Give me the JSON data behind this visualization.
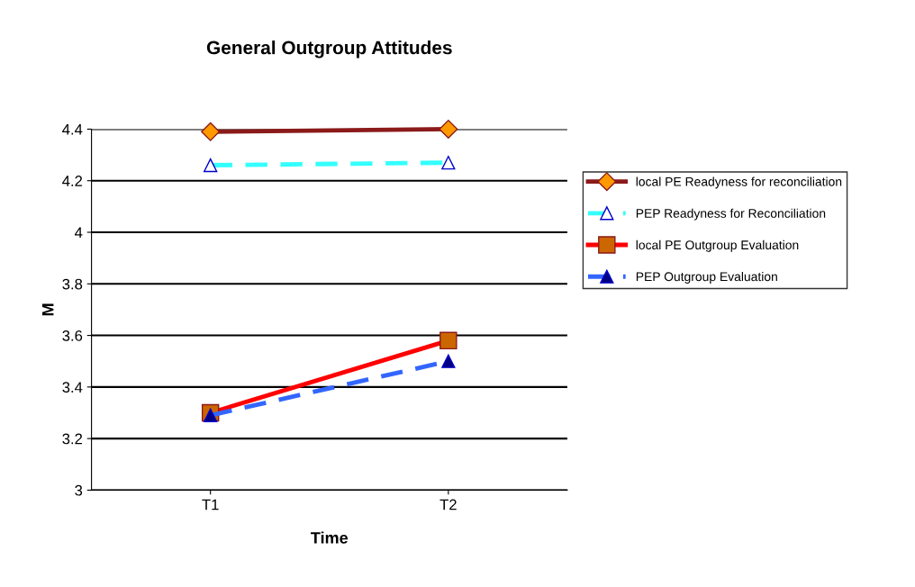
{
  "chart_data": {
    "type": "line",
    "title": "General Outgroup Attitudes",
    "xlabel": "Time",
    "ylabel": "M",
    "categories": [
      "T1",
      "T2"
    ],
    "series": [
      {
        "name": "local PE Readyness for reconciliation",
        "color": "#8b1a1a",
        "values": [
          4.39,
          4.4
        ],
        "marker": "diamond",
        "line_style": "solid"
      },
      {
        "name": "PEP Readyness for Reconciliation",
        "color": "#33ffff",
        "values": [
          4.26,
          4.27
        ],
        "marker": "triangle",
        "line_style": "dashed"
      },
      {
        "name": "local PE Outgroup Evaluation",
        "color": "#ff0000",
        "values": [
          3.3,
          3.58
        ],
        "marker": "square",
        "line_style": "solid"
      },
      {
        "name": "PEP Outgroup Evaluation",
        "color": "#3366ff",
        "values": [
          3.29,
          3.5
        ],
        "marker": "triangle",
        "line_style": "dashed"
      }
    ],
    "ylim": [
      3,
      4.4
    ],
    "yticks": [
      3,
      3.2,
      3.4,
      3.6,
      3.8,
      4,
      4.2,
      4.4
    ],
    "grid": "y",
    "legend": "right"
  }
}
